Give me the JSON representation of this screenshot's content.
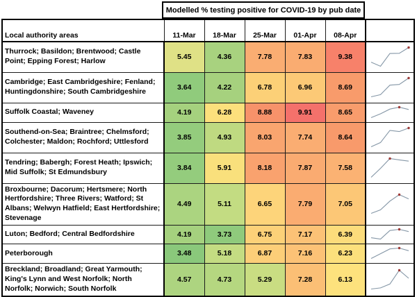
{
  "chart_data": {
    "type": "heatmap",
    "title": "Modelled % testing positive for COVID-19 by pub date",
    "row_label_header": "Local authority areas",
    "columns": [
      "11-Mar",
      "18-Mar",
      "25-Mar",
      "01-Apr",
      "08-Apr"
    ],
    "rows": [
      {
        "area": "Thurrock; Basildon; Brentwood; Castle Point; Epping Forest; Harlow",
        "values": [
          5.45,
          4.36,
          7.78,
          7.83,
          9.38
        ],
        "cell_colors": [
          "#DFE186",
          "#A8D27F",
          "#FAAD72",
          "#FAAC71",
          "#F7816A"
        ]
      },
      {
        "area": "Cambridge; East Cambridgeshire; Fenland; Huntingdonshire; South Cambridgeshire",
        "values": [
          3.64,
          4.22,
          6.78,
          6.96,
          8.69
        ],
        "cell_colors": [
          "#90CB7C",
          "#A6D17E",
          "#FCD077",
          "#FCC976",
          "#F89B6B"
        ]
      },
      {
        "area": "Suffolk Coastal; Waveney",
        "values": [
          4.19,
          6.28,
          8.88,
          9.91,
          8.65
        ],
        "cell_colors": [
          "#A5D17E",
          "#FCE07C",
          "#F7926A",
          "#F4716B",
          "#F89C6C"
        ]
      },
      {
        "area": "Southend-on-Sea; Braintree; Chelmsford; Colchester; Maldon; Rochford; Uttlesford",
        "values": [
          3.85,
          4.93,
          8.03,
          7.74,
          8.64
        ],
        "cell_colors": [
          "#94CC7D",
          "#BFDA81",
          "#F9A56F",
          "#FAAD72",
          "#F89A6B"
        ]
      },
      {
        "area": "Tendring; Babergh; Forest Heath; Ipswich; Mid Suffolk; St Edmundsbury",
        "values": [
          3.84,
          5.91,
          8.18,
          7.87,
          7.58
        ],
        "cell_colors": [
          "#94CC7D",
          "#F9E07C",
          "#F9A26E",
          "#FAAB71",
          "#FBB273"
        ]
      },
      {
        "area": "Broxbourne; Dacorum; Hertsmere; North Hertfordshire; Three Rivers; Watford; St Albans; Welwyn Hatfield; East Hertfordshire; Stevenage",
        "values": [
          4.49,
          5.11,
          6.65,
          7.79,
          7.05
        ],
        "cell_colors": [
          "#ABD480",
          "#C3DC82",
          "#FDD47A",
          "#FAAC71",
          "#FCC776"
        ]
      },
      {
        "area": "Luton; Bedford; Central Bedfordshire",
        "values": [
          4.19,
          3.73,
          6.75,
          7.17,
          6.39
        ],
        "cell_colors": [
          "#A5D17E",
          "#8FCA7C",
          "#FCD178",
          "#FCC276",
          "#FCDC7B"
        ]
      },
      {
        "area": "Peterborough",
        "values": [
          3.48,
          5.18,
          6.87,
          7.16,
          6.23
        ],
        "cell_colors": [
          "#8AC87B",
          "#C4DC82",
          "#FCCE78",
          "#FCC276",
          "#FCE07C"
        ]
      },
      {
        "area": "Breckland; Broadland; Great Yarmouth; King's Lynn and West Norfolk; North Norfolk; Norwich; South Norfolk",
        "values": [
          4.57,
          4.73,
          5.29,
          7.28,
          6.13
        ],
        "cell_colors": [
          "#ADD480",
          "#B5D780",
          "#C9DD82",
          "#FBBF75",
          "#FDE27D"
        ]
      }
    ],
    "color_scale": {
      "low": "#63BE7B",
      "mid": "#FFEB84",
      "high": "#F8696B"
    },
    "sparkline": {
      "type": "line",
      "marker_on": "high point",
      "line_color": "#8496A6",
      "marker_color": "#9E3A38"
    },
    "value_decimals": 2
  }
}
